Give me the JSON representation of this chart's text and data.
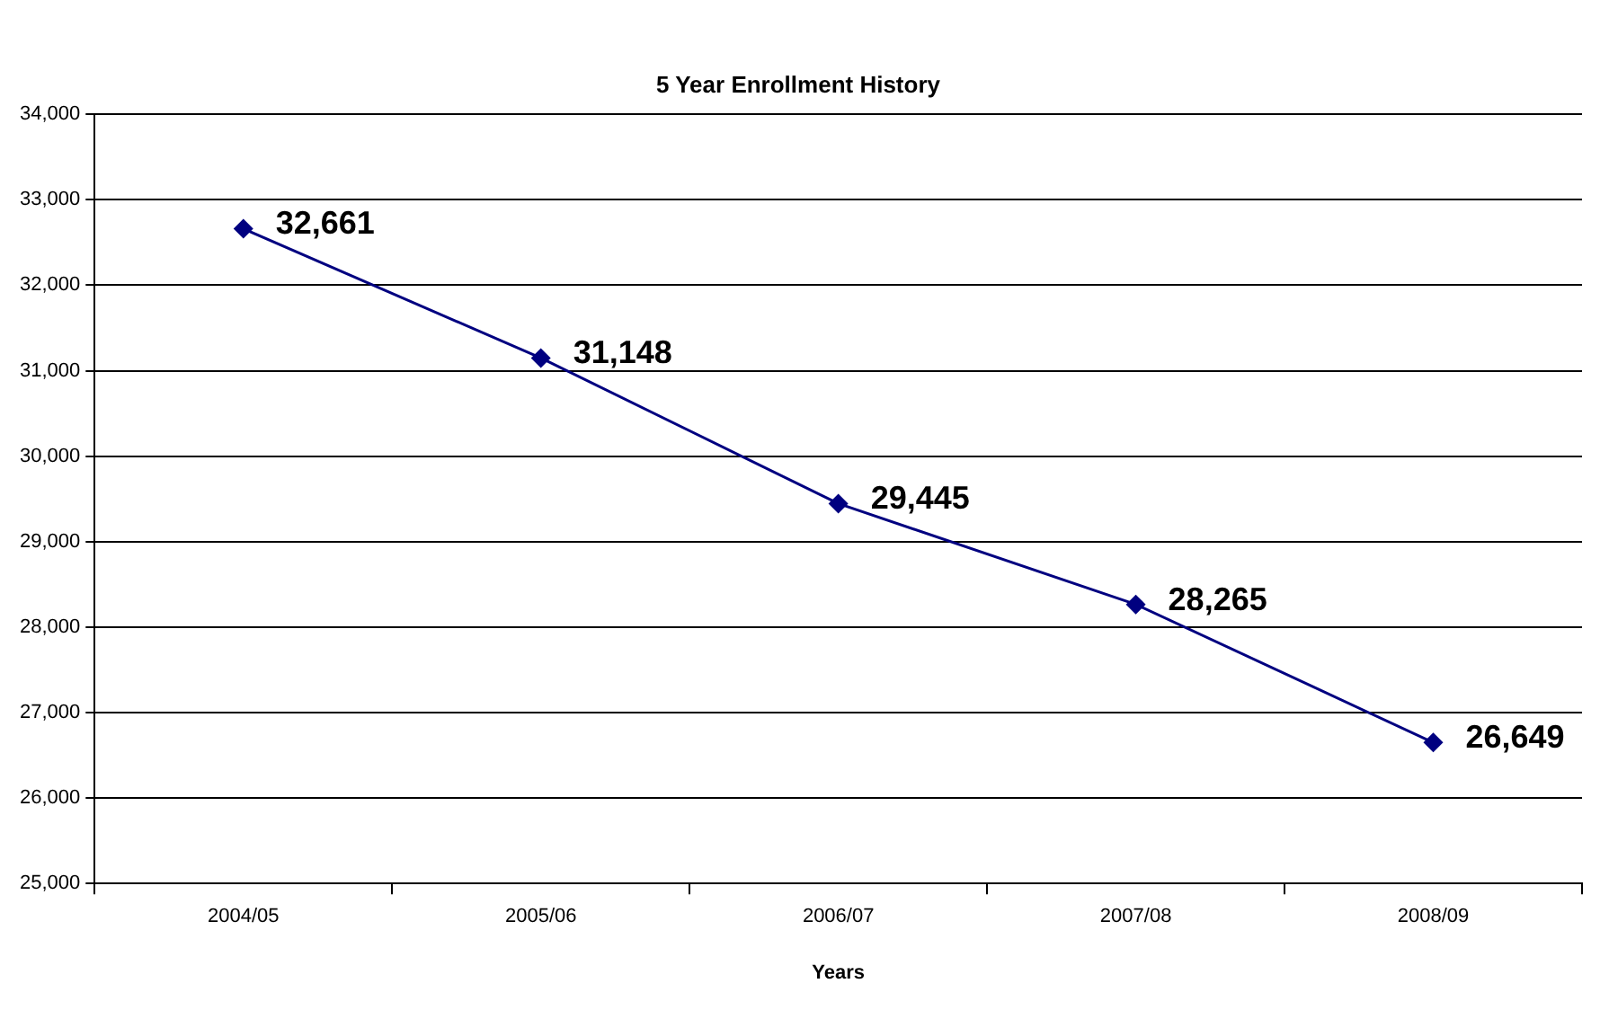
{
  "chart_data": {
    "type": "line",
    "title": "5 Year Enrollment History",
    "xlabel": "Years",
    "categories": [
      "2004/05",
      "2005/06",
      "2006/07",
      "2007/08",
      "2008/09"
    ],
    "series": [
      {
        "color": "#000080",
        "values": [
          32661,
          31148,
          29445,
          28265,
          26649
        ],
        "value_labels": [
          "32,661",
          "31,148",
          "29,445",
          "28,265",
          "26,649"
        ]
      }
    ],
    "ylim": [
      25000,
      34000
    ],
    "yticks": [
      {
        "value": 25000,
        "label": "25,000"
      },
      {
        "value": 26000,
        "label": "26,000"
      },
      {
        "value": 27000,
        "label": "27,000"
      },
      {
        "value": 28000,
        "label": "28,000"
      },
      {
        "value": 29000,
        "label": "29,000"
      },
      {
        "value": 30000,
        "label": "30,000"
      },
      {
        "value": 31000,
        "label": "31,000"
      },
      {
        "value": 32000,
        "label": "32,000"
      },
      {
        "value": 33000,
        "label": "33,000"
      },
      {
        "value": 34000,
        "label": "34,000"
      }
    ],
    "grid": "y",
    "legend": false,
    "marker": "diamond",
    "line_style": "solid"
  }
}
